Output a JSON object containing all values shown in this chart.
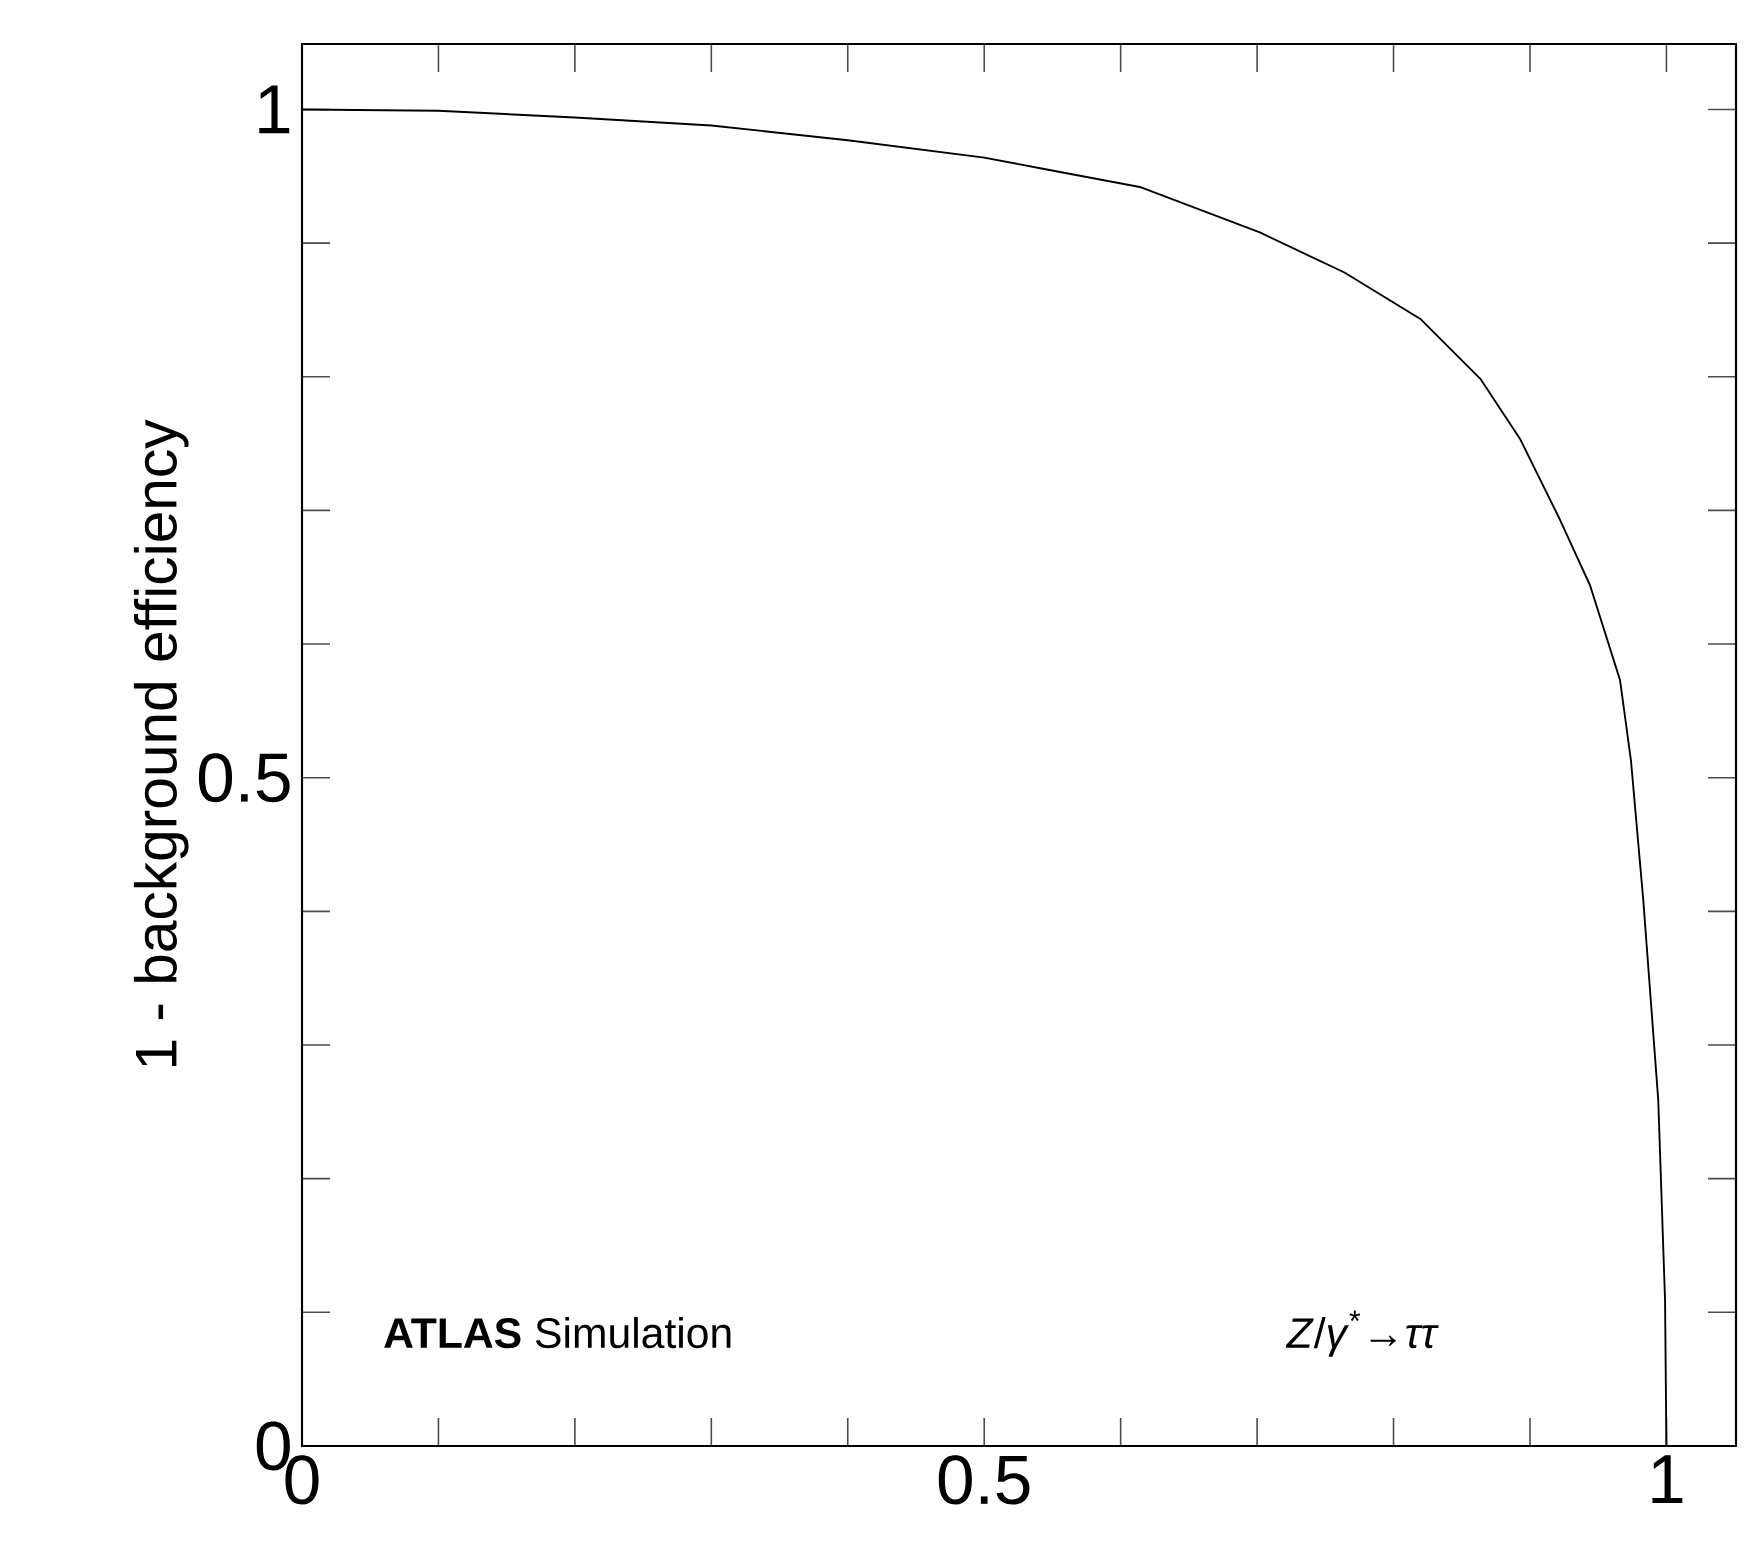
{
  "chart_data": {
    "type": "line",
    "ylabel": "1 - background efficiency",
    "x": [
      0,
      0.1,
      0.2,
      0.3,
      0.4,
      0.5,
      0.541,
      0.614,
      0.702,
      0.764,
      0.82,
      0.864,
      0.893,
      0.922,
      0.944,
      0.966,
      0.974,
      0.983,
      0.994,
      0.999,
      1.0
    ],
    "series": [
      {
        "color": "#000000",
        "values": [
          1,
          0.999,
          0.994,
          0.988,
          0.977,
          0.964,
          0.956,
          0.942,
          0.908,
          0.878,
          0.843,
          0.798,
          0.753,
          0.693,
          0.644,
          0.573,
          0.513,
          0.409,
          0.259,
          0.109,
          0
        ]
      }
    ],
    "xlim": [
      0,
      1.051
    ],
    "ylim": [
      0,
      1.049
    ],
    "xticks": [
      0,
      {
        "value": 0.1,
        "label": null
      },
      {
        "value": 0.2,
        "label": null
      },
      {
        "value": 0.3,
        "label": null
      },
      {
        "value": 0.4,
        "label": null
      },
      0.5,
      {
        "value": 0.6,
        "label": null
      },
      {
        "value": 0.7,
        "label": null
      },
      {
        "value": 0.8,
        "label": null
      },
      {
        "value": 0.9,
        "label": null
      },
      1
    ],
    "yticks": [
      0,
      {
        "value": 0.1,
        "label": null
      },
      {
        "value": 0.2,
        "label": null
      },
      {
        "value": 0.3,
        "label": null
      },
      {
        "value": 0.4,
        "label": null
      },
      0.5,
      {
        "value": 0.6,
        "label": null
      },
      {
        "value": 0.7,
        "label": null
      },
      {
        "value": 0.8,
        "label": null
      },
      {
        "value": 0.9,
        "label": null
      },
      1
    ],
    "annotations": [
      "**ATLAS** Simulation",
      "*Z*/*γ*$^{*}$→*ττ*"
    ],
    "marker": "none",
    "line_style": "solid"
  }
}
